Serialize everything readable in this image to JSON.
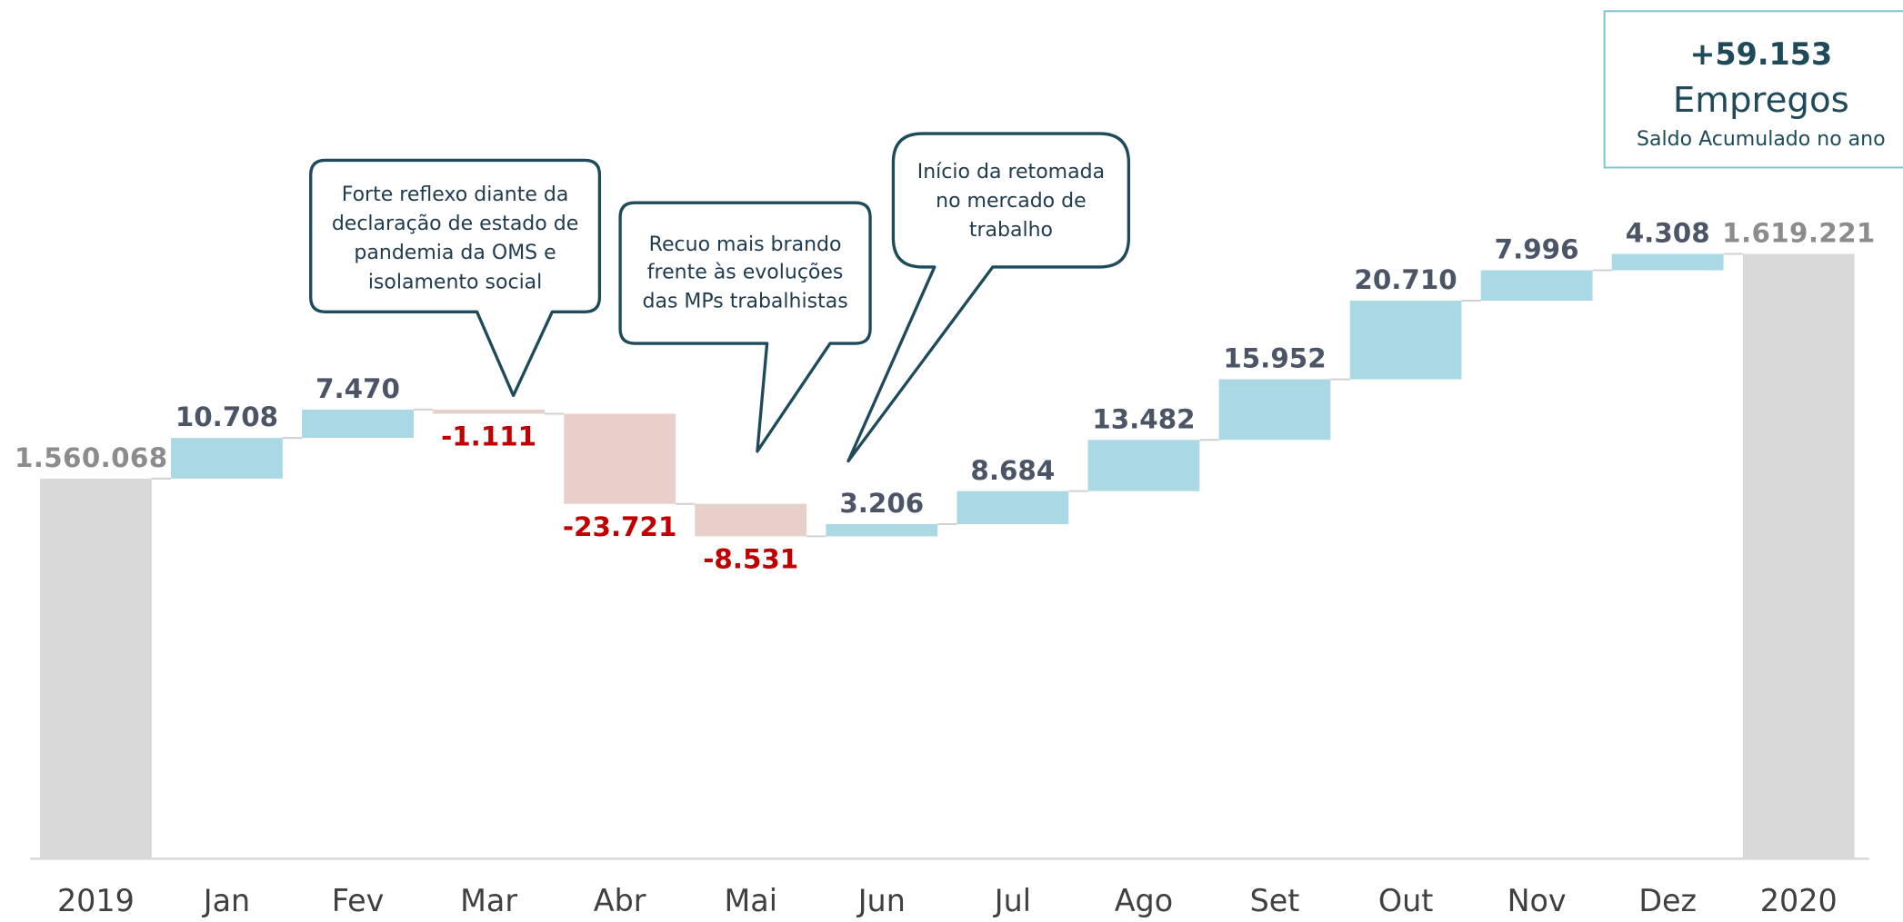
{
  "chart_data": {
    "type": "waterfall",
    "categories": [
      "2019",
      "Jan",
      "Fev",
      "Mar",
      "Abr",
      "Mai",
      "Jun",
      "Jul",
      "Ago",
      "Set",
      "Out",
      "Nov",
      "Dez",
      "2020"
    ],
    "values": [
      1560068,
      10708,
      7470,
      -1111,
      -23721,
      -8531,
      3206,
      8684,
      13482,
      15952,
      20710,
      7996,
      4308,
      1619221
    ],
    "value_labels": [
      "1.560.068",
      "10.708",
      "7.470",
      "-1.111",
      "-23.721",
      "-8.531",
      "3.206",
      "8.684",
      "13.482",
      "15.952",
      "20.710",
      "7.996",
      "4.308",
      "1.619.221"
    ],
    "measure": [
      "total",
      "relative",
      "relative",
      "relative",
      "relative",
      "relative",
      "relative",
      "relative",
      "relative",
      "relative",
      "relative",
      "relative",
      "relative",
      "total"
    ],
    "colors": {
      "total": "#d9d9d9",
      "increase": "#aad8e3",
      "decrease": "#e8d0ca"
    },
    "label_colors": {
      "total": "#8c8c8c",
      "increase": "#4b5566",
      "decrease": "#c00000"
    },
    "ylim": [
      1460000,
      1686000
    ],
    "annotations": [
      {
        "lines": [
          "Forte reflexo diante da",
          "declaração de estado de",
          "pandemia da OMS e",
          "isolamento social"
        ]
      },
      {
        "lines": [
          "Recuo mais brando",
          "frente às evoluções",
          "das MPs trabalhistas"
        ]
      },
      {
        "lines": [
          "Início da retomada",
          "no mercado de",
          "trabalho"
        ]
      }
    ],
    "summary": {
      "value": "+59.153",
      "label": "Empregos",
      "caption": "Saldo Acumulado no ano"
    }
  }
}
